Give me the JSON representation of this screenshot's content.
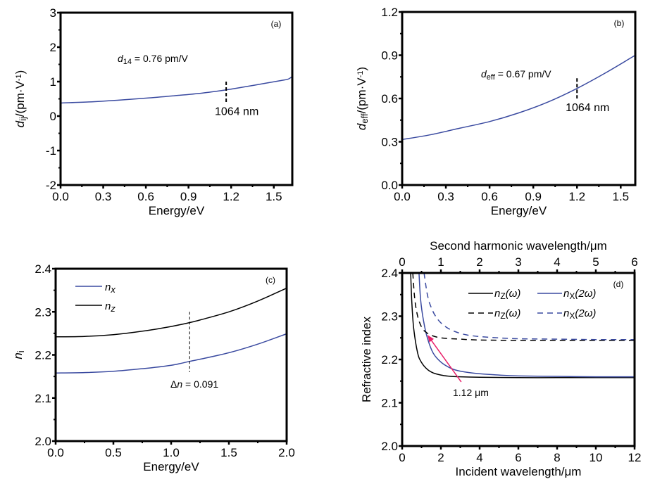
{
  "colors": {
    "blue": "#3a4aa0",
    "black": "#000000",
    "arrow": "#e8206a"
  },
  "chart_data": [
    {
      "id": "a",
      "type": "line",
      "panel_label": "(a)",
      "xlabel": "Energy/eV",
      "ylabel_main": "d",
      "ylabel_sub": "ij",
      "ylabel_rest": "/(pm·V",
      "ylabel_sup": "-1",
      "ylabel_close": ")",
      "xlim": [
        0,
        1.63
      ],
      "ylim": [
        -2,
        3
      ],
      "xticks": [
        0.0,
        0.3,
        0.6,
        0.9,
        1.2,
        1.5
      ],
      "xtick_labels": [
        "0.0",
        "0.3",
        "0.6",
        "0.9",
        "1.2",
        "1.5"
      ],
      "yticks": [
        -2,
        -1,
        0,
        1,
        2,
        3
      ],
      "ytick_labels": [
        "-2",
        "-1",
        "0",
        "1",
        "2",
        "3"
      ],
      "series": [
        {
          "name": "d14",
          "color": "blue",
          "dash": false,
          "x": [
            0,
            0.2,
            0.4,
            0.6,
            0.8,
            1.0,
            1.165,
            1.3,
            1.45,
            1.55,
            1.6,
            1.63
          ],
          "y": [
            0.38,
            0.41,
            0.46,
            0.52,
            0.59,
            0.67,
            0.76,
            0.85,
            0.96,
            1.03,
            1.07,
            1.15
          ]
        }
      ],
      "annotations": {
        "value_main": "d",
        "value_sub": "14",
        "value_text": " = 0.76 pm/V",
        "marker_label": "1064 nm",
        "marker_x": 1.165,
        "marker_y_range": [
          0.4,
          1.0
        ]
      }
    },
    {
      "id": "b",
      "type": "line",
      "panel_label": "(b)",
      "xlabel": "Energy/eV",
      "ylabel_main": "d",
      "ylabel_sub": "eff",
      "ylabel_rest": "/(pm·V",
      "ylabel_sup": "-1",
      "ylabel_close": ")",
      "xlim": [
        0,
        1.6
      ],
      "ylim": [
        0,
        1.2
      ],
      "xticks": [
        0.0,
        0.3,
        0.6,
        0.9,
        1.2,
        1.5
      ],
      "xtick_labels": [
        "0.0",
        "0.3",
        "0.6",
        "0.9",
        "1.2",
        "1.5"
      ],
      "yticks": [
        0.0,
        0.3,
        0.6,
        0.9,
        1.2
      ],
      "ytick_labels": [
        "0.0",
        "0.3",
        "0.6",
        "0.9",
        "1.2"
      ],
      "series": [
        {
          "name": "deff",
          "color": "blue",
          "dash": false,
          "x": [
            0,
            0.2,
            0.4,
            0.6,
            0.8,
            1.0,
            1.2,
            1.4,
            1.6
          ],
          "y": [
            0.315,
            0.35,
            0.395,
            0.44,
            0.5,
            0.575,
            0.67,
            0.78,
            0.9
          ]
        }
      ],
      "annotations": {
        "value_main": "d",
        "value_sub": "eff",
        "value_text": " = 0.67 pm/V",
        "marker_label": "1064 nm",
        "marker_x": 1.2,
        "marker_y_range": [
          0.6,
          0.74
        ]
      }
    },
    {
      "id": "c",
      "type": "line",
      "panel_label": "(c)",
      "xlabel": "Energy/eV",
      "ylabel_main": "n",
      "ylabel_sub": "i",
      "xlim": [
        0,
        2.0
      ],
      "ylim": [
        2.0,
        2.4
      ],
      "xticks": [
        0.0,
        0.5,
        1.0,
        1.5,
        2.0
      ],
      "xtick_labels": [
        "0.0",
        "0.5",
        "1.0",
        "1.5",
        "2.0"
      ],
      "yticks": [
        2.0,
        2.1,
        2.2,
        2.3,
        2.4
      ],
      "ytick_labels": [
        "2.0",
        "2.1",
        "2.2",
        "2.3",
        "2.4"
      ],
      "legend_position": "top-left",
      "series": [
        {
          "name": "n",
          "sub": "x",
          "color": "blue",
          "dash": false,
          "x": [
            0,
            0.25,
            0.5,
            0.75,
            1.0,
            1.16,
            1.25,
            1.5,
            1.75,
            2.0
          ],
          "y": [
            2.158,
            2.159,
            2.162,
            2.168,
            2.176,
            2.185,
            2.19,
            2.205,
            2.225,
            2.249
          ]
        },
        {
          "name": "n",
          "sub": "z",
          "color": "black",
          "dash": false,
          "x": [
            0,
            0.25,
            0.5,
            0.75,
            1.0,
            1.16,
            1.25,
            1.5,
            1.75,
            2.0
          ],
          "y": [
            2.242,
            2.243,
            2.247,
            2.255,
            2.266,
            2.275,
            2.281,
            2.3,
            2.325,
            2.355
          ]
        }
      ],
      "annotations": {
        "delta_symbol": "Δ",
        "delta_var": "n",
        "delta_text": " = 0.091",
        "marker_x": 1.16,
        "marker_y_range": [
          2.16,
          2.3
        ]
      }
    },
    {
      "id": "d",
      "type": "line",
      "panel_label": "(d)",
      "xlabel": "Incident wavelength/μm",
      "x2label": "Second harmonic wavelength/μm",
      "ylabel": "Refractive index",
      "xlim": [
        0,
        12
      ],
      "x2lim": [
        0,
        6
      ],
      "ylim": [
        2.0,
        2.4
      ],
      "xticks": [
        0,
        2,
        4,
        6,
        8,
        10,
        12
      ],
      "xtick_labels": [
        "0",
        "2",
        "4",
        "6",
        "8",
        "10",
        "12"
      ],
      "x2ticks": [
        0,
        1,
        2,
        3,
        4,
        5,
        6
      ],
      "x2tick_labels": [
        "0",
        "1",
        "2",
        "3",
        "4",
        "5",
        "6"
      ],
      "yticks": [
        2.0,
        2.1,
        2.2,
        2.3,
        2.4
      ],
      "ytick_labels": [
        "2.0",
        "2.1",
        "2.2",
        "2.3",
        "2.4"
      ],
      "legend_position": "top-right",
      "series": [
        {
          "name": "n",
          "sub": "Z",
          "arg": "(ω)",
          "color": "black",
          "dash": false,
          "x": [
            0.44,
            0.5,
            0.6,
            0.8,
            1.0,
            1.3,
            1.6,
            2.0,
            2.5,
            3.0,
            4.0,
            6.0,
            8.0,
            10.0,
            12.0
          ],
          "y": [
            2.4,
            2.33,
            2.27,
            2.215,
            2.193,
            2.177,
            2.169,
            2.164,
            2.161,
            2.16,
            2.159,
            2.158,
            2.158,
            2.158,
            2.158
          ]
        },
        {
          "name": "n",
          "sub": "X",
          "arg": "(2ω)",
          "color": "blue",
          "dash": false,
          "x": [
            0.87,
            0.95,
            1.1,
            1.3,
            1.6,
            2.0,
            2.5,
            3.0,
            4.0,
            5.0,
            6.0,
            8.0,
            10.0,
            12.0
          ],
          "y": [
            2.4,
            2.34,
            2.29,
            2.25,
            2.215,
            2.194,
            2.18,
            2.173,
            2.167,
            2.164,
            2.162,
            2.161,
            2.16,
            2.16
          ]
        },
        {
          "name": "n",
          "sub": "Z",
          "arg": "(ω)",
          "color": "black",
          "dash": true,
          "x": [
            0.55,
            0.65,
            0.8,
            1.0,
            1.2,
            1.5,
            2.0,
            3.0,
            4.0,
            6.0,
            8.0,
            10.0,
            12.0
          ],
          "y": [
            2.4,
            2.34,
            2.3,
            2.275,
            2.264,
            2.256,
            2.25,
            2.247,
            2.245,
            2.244,
            2.244,
            2.244,
            2.244
          ]
        },
        {
          "name": "n",
          "sub": "X",
          "arg": "(2ω)",
          "color": "blue",
          "dash": true,
          "x": [
            1.13,
            1.3,
            1.5,
            1.8,
            2.2,
            2.7,
            3.3,
            4.0,
            5.0,
            6.0,
            8.0,
            10.0,
            12.0
          ],
          "y": [
            2.4,
            2.35,
            2.32,
            2.295,
            2.277,
            2.265,
            2.257,
            2.253,
            2.25,
            2.248,
            2.247,
            2.246,
            2.246
          ]
        }
      ],
      "annotations": {
        "arrow_label": "1.12 μm",
        "arrow_from": [
          3.05,
          2.148
        ],
        "arrow_to": [
          1.35,
          2.254
        ]
      }
    }
  ]
}
